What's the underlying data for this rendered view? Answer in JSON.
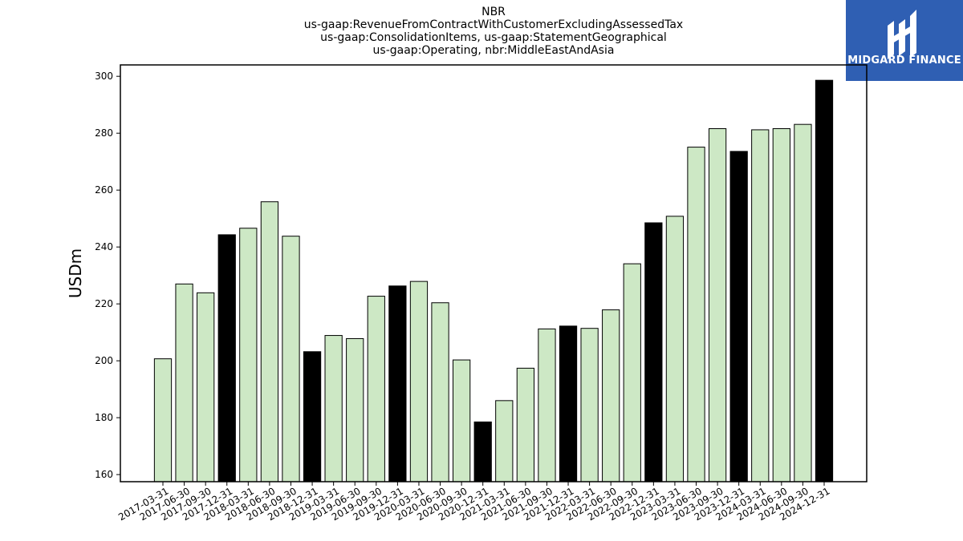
{
  "header": {
    "title_lines": [
      "NBR",
      "us-gaap:RevenueFromContractWithCustomerExcludingAssessedTax",
      "us-gaap:ConsolidationItems, us-gaap:StatementGeographical",
      "us-gaap:Operating, nbr:MiddleEastAndAsia"
    ]
  },
  "logo": {
    "text": "MIDGARD FINANCE",
    "bg_color": "#2f5fb3"
  },
  "chart_data": {
    "type": "bar",
    "title": "NBR\nus-gaap:RevenueFromContractWithCustomerExcludingAssessedTax\nus-gaap:ConsolidationItems, us-gaap:StatementGeographical\nus-gaap:Operating, nbr:MiddleEastAndAsia",
    "xlabel": "",
    "ylabel": "USDm",
    "ylim": [
      157.5,
      304
    ],
    "yticks": [
      160,
      180,
      200,
      220,
      240,
      260,
      280,
      300
    ],
    "grid": false,
    "legend": "none",
    "colors": {
      "quarter": "#cde8c5",
      "year_end": "#000000",
      "edge": "#000000"
    },
    "categories": [
      "2017-03-31",
      "2017-06-30",
      "2017-09-30",
      "2017-12-31",
      "2018-03-31",
      "2018-06-30",
      "2018-09-30",
      "2018-12-31",
      "2019-03-31",
      "2019-06-30",
      "2019-09-30",
      "2019-12-31",
      "2020-03-31",
      "2020-06-30",
      "2020-09-30",
      "2020-12-31",
      "2021-03-31",
      "2021-06-30",
      "2021-09-30",
      "2021-12-31",
      "2022-03-31",
      "2022-06-30",
      "2022-09-30",
      "2022-12-31",
      "2023-03-31",
      "2023-06-30",
      "2023-09-30",
      "2023-12-31",
      "2024-03-31",
      "2024-06-30",
      "2024-09-30",
      "2024-12-31"
    ],
    "values": [
      200.7,
      227.0,
      223.9,
      244.3,
      246.6,
      255.9,
      243.8,
      203.2,
      208.9,
      207.8,
      222.7,
      226.3,
      227.9,
      220.4,
      200.3,
      178.5,
      186.0,
      197.4,
      211.2,
      212.2,
      211.4,
      217.9,
      234.1,
      248.5,
      250.8,
      275.1,
      281.6,
      273.6,
      281.2,
      281.6,
      283.1,
      298.6
    ]
  }
}
